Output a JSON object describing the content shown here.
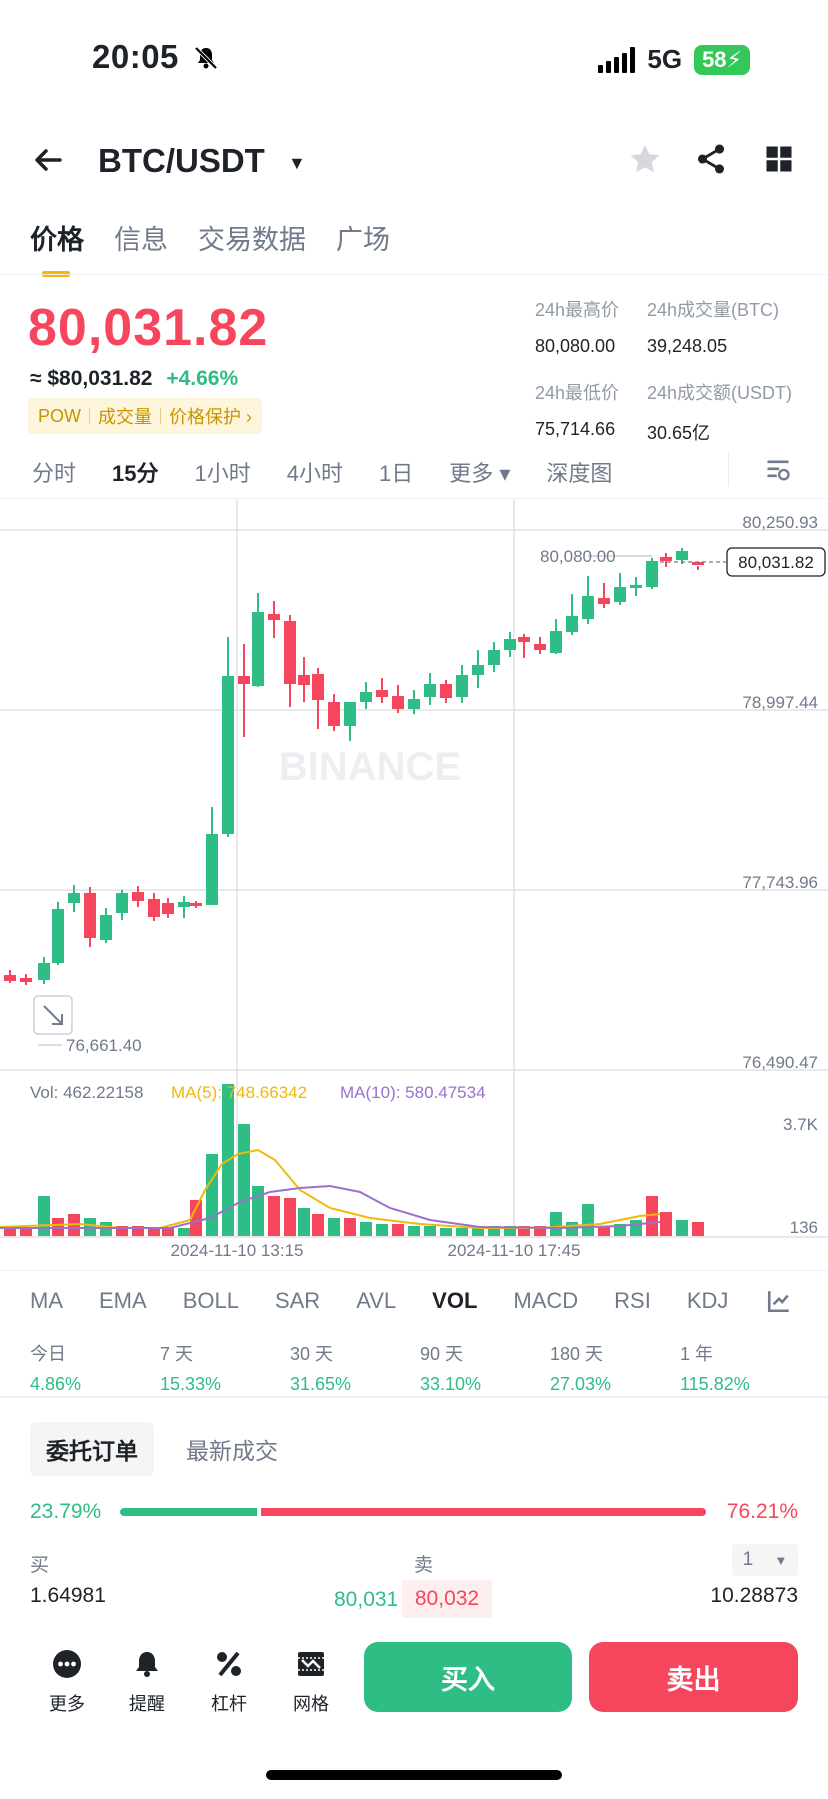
{
  "status": {
    "time": "20:05",
    "network": "5G",
    "battery": "58"
  },
  "header": {
    "pair": "BTC/USDT"
  },
  "tabs": [
    "价格",
    "信息",
    "交易数据",
    "广场"
  ],
  "price": {
    "last": "80,031.82",
    "usd": "≈ $80,031.82",
    "change": "+4.66%",
    "tags": [
      "POW",
      "成交量",
      "价格保护 ›"
    ]
  },
  "stats": {
    "high_label": "24h最高价",
    "high": "80,080.00",
    "vol_btc_label": "24h成交量(BTC)",
    "vol_btc": "39,248.05",
    "low_label": "24h最低价",
    "low": "75,714.66",
    "vol_usdt_label": "24h成交额(USDT)",
    "vol_usdt": "30.65亿"
  },
  "intervals": [
    "分时",
    "15分",
    "1小时",
    "4小时",
    "1日",
    "更多 ▾",
    "深度图"
  ],
  "chart": {
    "price_axis": [
      "80,250.93",
      "78,997.44",
      "77,743.96",
      "76,490.47"
    ],
    "high_marker": "80,080.00",
    "low_marker": "76,661.40",
    "current_tag": "80,031.82",
    "watermark": "BINANCE",
    "vol_label": "Vol: 462.22158",
    "ma5_label": "MA(5): 748.66342",
    "ma10_label": "MA(10): 580.47534",
    "vol_axis": [
      "3.7K",
      "136"
    ],
    "time_labels": [
      "2024-11-10 13:15",
      "2024-11-10 17:45"
    ],
    "colors": {
      "up": "#2ebd85",
      "down": "#f6465d",
      "ma5": "#f0b90b",
      "ma10": "#9b72cb"
    }
  },
  "indicators": [
    "MA",
    "EMA",
    "BOLL",
    "SAR",
    "AVL",
    "VOL",
    "MACD",
    "RSI",
    "KDJ"
  ],
  "performance": [
    {
      "label": "今日",
      "value": "4.86%"
    },
    {
      "label": "7 天",
      "value": "15.33%"
    },
    {
      "label": "30 天",
      "value": "31.65%"
    },
    {
      "label": "90 天",
      "value": "33.10%"
    },
    {
      "label": "180 天",
      "value": "27.03%"
    },
    {
      "label": "1 年",
      "value": "115.82%"
    }
  ],
  "orderbook": {
    "tabs": [
      "委托订单",
      "最新成交"
    ],
    "buy_ratio": "23.79%",
    "sell_ratio": "76.21%",
    "buy_fraction": 0.2379,
    "buy_label": "买",
    "sell_label": "卖",
    "depth_select": "1",
    "buy_qty": "1.64981",
    "bid": "80,031",
    "ask": "80,032",
    "sell_qty": "10.28873"
  },
  "bottom": {
    "more": "更多",
    "alert": "提醒",
    "leverage": "杠杆",
    "grid": "网格",
    "buy": "买入",
    "sell": "卖出"
  }
}
